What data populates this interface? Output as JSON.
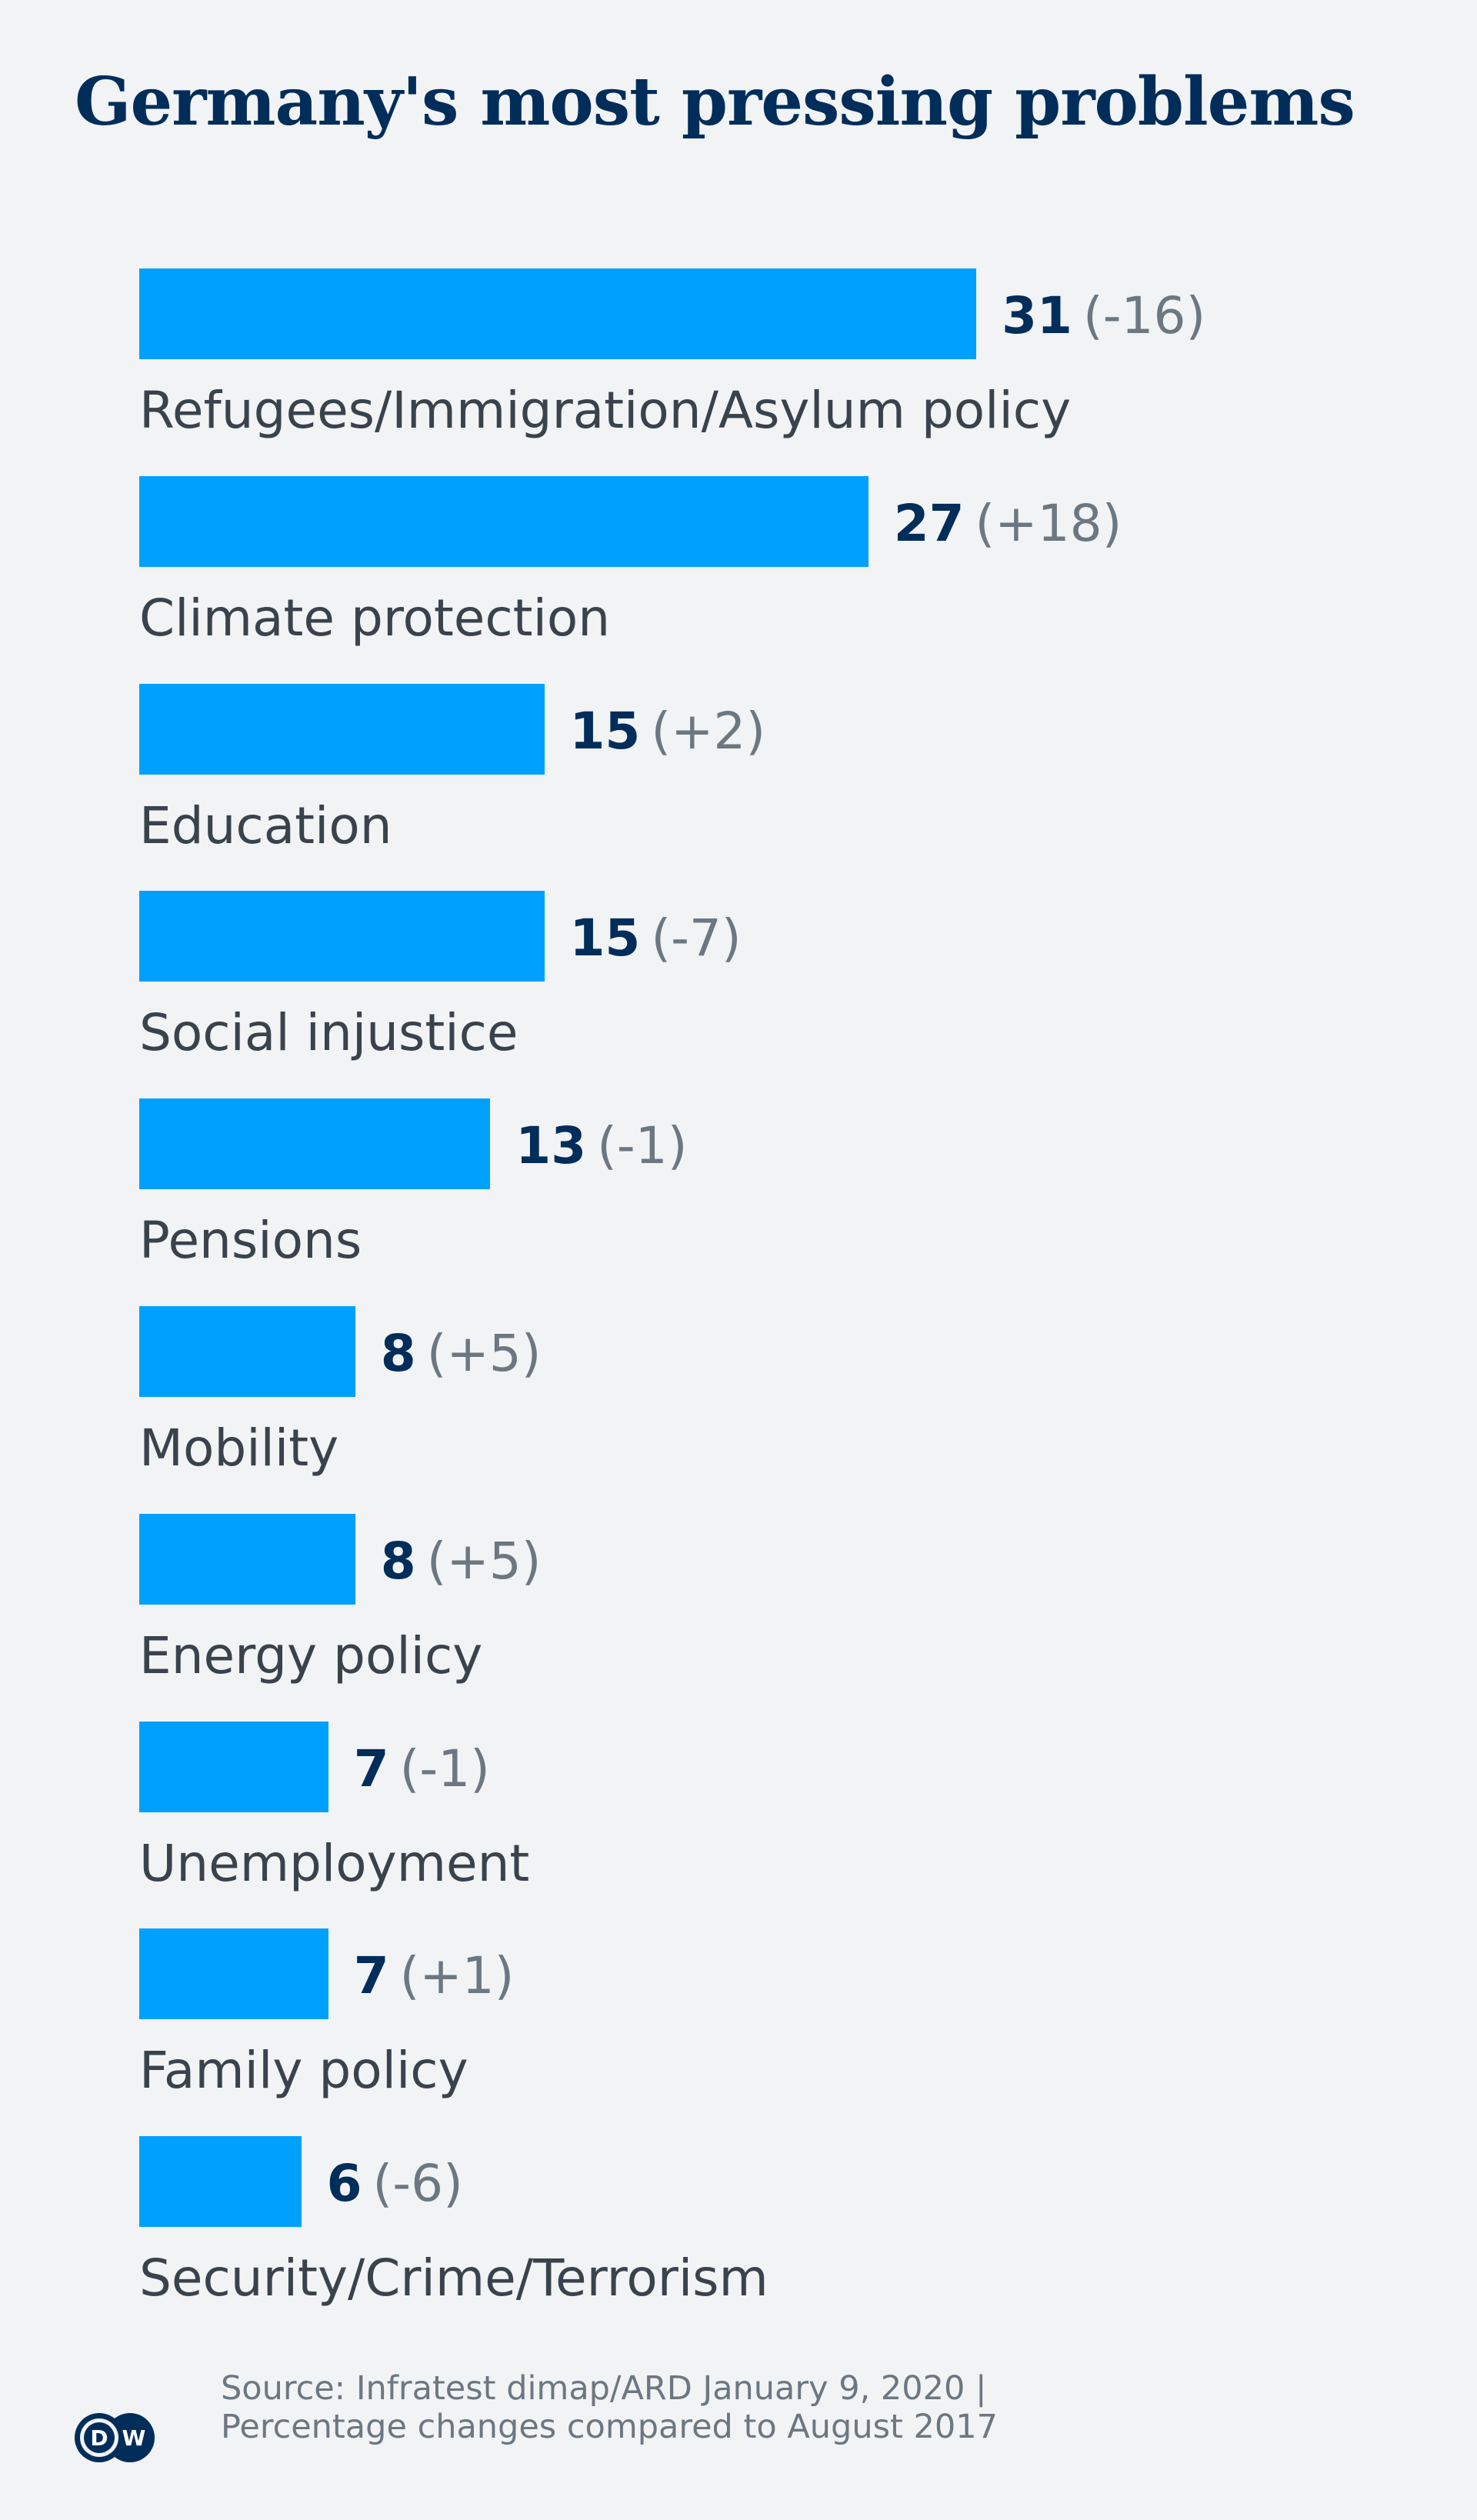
{
  "title": "Germany's most pressing problems",
  "colors": {
    "background": "#f2f3f5",
    "bar": "#00a0ff",
    "value": "#002d5a",
    "delta": "#6c7781",
    "label": "#3a424c",
    "title": "#002d5a"
  },
  "chart_data": {
    "type": "bar",
    "orientation": "horizontal",
    "title": "Germany's most pressing problems",
    "xlabel": "",
    "ylabel": "",
    "unit": "percent",
    "grid": false,
    "legend": null,
    "categories": [
      "Refugees/Immigration/Asylum policy",
      "Climate protection",
      "Education",
      "Social injustice",
      "Pensions",
      "Mobility",
      "Energy policy",
      "Unemployment",
      "Family policy",
      "Security/Crime/Terrorism"
    ],
    "values": [
      31,
      27,
      15,
      15,
      13,
      8,
      8,
      7,
      7,
      6
    ],
    "changes": [
      "-16",
      "+18",
      "+2",
      "-7",
      "-1",
      "+5",
      "+5",
      "-1",
      "+1",
      "-6"
    ],
    "annotations": "Percentage changes compared to August 2017",
    "xlim": [
      0,
      31
    ]
  },
  "rows": [
    {
      "label": "Refugees/Immigration/Asylum policy",
      "value": "31",
      "delta": "(-16)"
    },
    {
      "label": "Climate protection",
      "value": "27",
      "delta": "(+18)"
    },
    {
      "label": "Education",
      "value": "15",
      "delta": "(+2)"
    },
    {
      "label": "Social injustice",
      "value": "15",
      "delta": "(-7)"
    },
    {
      "label": "Pensions",
      "value": "13",
      "delta": "(-1)"
    },
    {
      "label": "Mobility",
      "value": "8",
      "delta": "(+5)"
    },
    {
      "label": "Energy policy",
      "value": "8",
      "delta": "(+5)"
    },
    {
      "label": "Unemployment",
      "value": "7",
      "delta": "(-1)"
    },
    {
      "label": "Family policy",
      "value": "7",
      "delta": "(+1)"
    },
    {
      "label": "Security/Crime/Terrorism",
      "value": "6",
      "delta": "(-6)"
    }
  ],
  "footer": {
    "source_line1": "Source: Infratest dimap/ARD January 9, 2020 |",
    "source_line2": "Percentage changes compared to August 2017",
    "logo_letters": [
      "D",
      "W"
    ]
  }
}
